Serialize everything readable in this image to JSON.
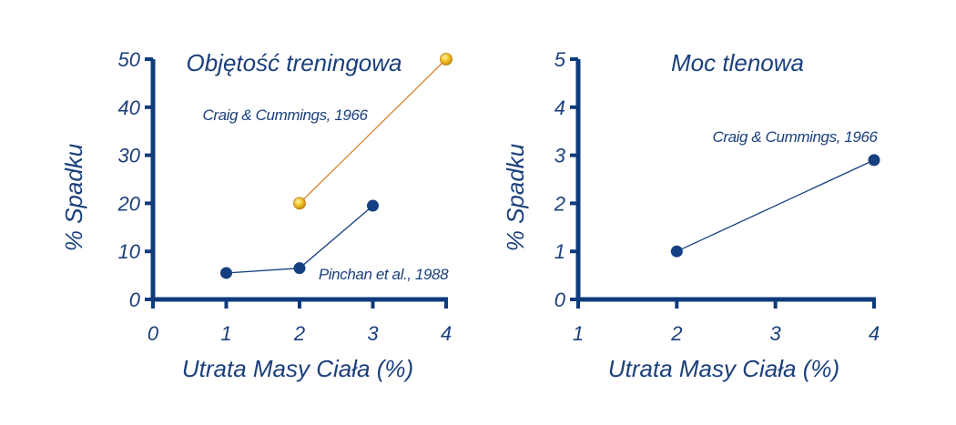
{
  "chart_data": [
    {
      "type": "line",
      "title": "Objętość treningowa",
      "xlabel": "Utrata Masy Ciała (%)",
      "ylabel": "% Spadku",
      "xlim": [
        0,
        4
      ],
      "ylim": [
        0,
        50
      ],
      "x_ticks": [
        "0",
        "1",
        "2",
        "3",
        "4"
      ],
      "y_ticks": [
        "0",
        "10",
        "20",
        "30",
        "40",
        "50"
      ],
      "colors": {
        "axis": "#0d3b7c",
        "navy": "#143f80",
        "orange": "#d9822b",
        "gold": "#e7b21c"
      },
      "series": [
        {
          "name": "Craig & Cummings, 1966",
          "color": "#d9822b",
          "marker": "gold",
          "x": [
            2,
            4
          ],
          "y": [
            20,
            50
          ]
        },
        {
          "name": "Pinchan et al., 1988",
          "color": "#143f80",
          "marker": "navy",
          "x": [
            1,
            2,
            3
          ],
          "y": [
            5.5,
            6.5,
            19.5
          ]
        }
      ]
    },
    {
      "type": "line",
      "title": "Moc tlenowa",
      "xlabel": "Utrata Masy Ciała (%)",
      "ylabel": "% Spadku",
      "xlim": [
        1,
        4
      ],
      "ylim": [
        0,
        5
      ],
      "x_ticks": [
        "1",
        "2",
        "3",
        "4"
      ],
      "y_ticks": [
        "0",
        "1",
        "2",
        "3",
        "4",
        "5"
      ],
      "colors": {
        "axis": "#0d3b7c",
        "navy": "#143f80"
      },
      "series": [
        {
          "name": "Craig & Cummings, 1966",
          "color": "#143f80",
          "marker": "navy",
          "x": [
            2,
            4
          ],
          "y": [
            1.0,
            2.9
          ]
        }
      ]
    }
  ]
}
